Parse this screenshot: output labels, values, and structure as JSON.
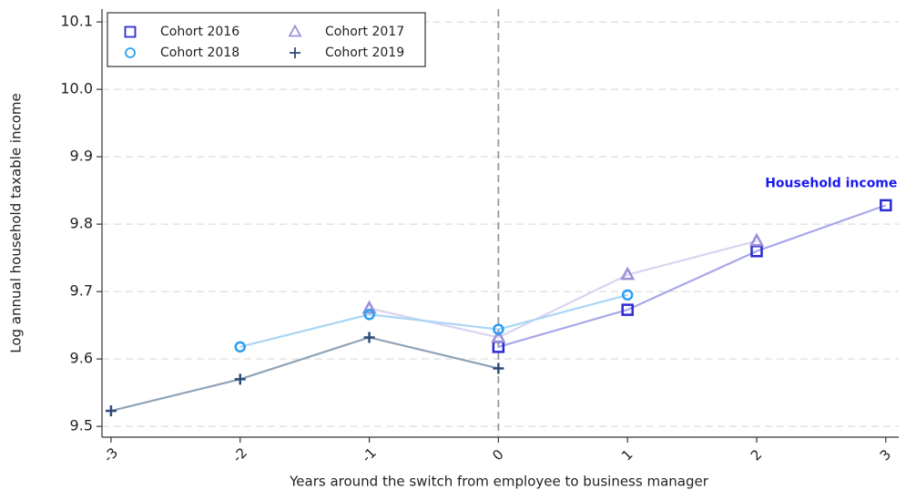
{
  "chart_data": {
    "type": "line",
    "xlabel": "Years around the switch from employee to business manager",
    "ylabel": "Log annual household taxable income",
    "annotation": {
      "text": "Household income",
      "x": 3,
      "y": 9.86,
      "color": "#1a1aee"
    },
    "vline": 0,
    "xlim": [
      -3.07,
      3.1
    ],
    "xticks": [
      -3,
      -2,
      -1,
      0,
      1,
      2,
      3
    ],
    "ylim": [
      9.484,
      10.119
    ],
    "yticks": [
      9.5,
      9.6,
      9.7,
      9.8,
      9.9,
      {
        "value": 10,
        "label": "10.0"
      },
      10.1
    ],
    "grid": true,
    "legend": "upper left",
    "series": [
      {
        "name": "Cohort 2016",
        "marker": "square",
        "color": "#2b2bd6",
        "line_color": "#a7a7ea",
        "x": [
          0,
          1,
          2,
          3
        ],
        "values": [
          9.618,
          9.673,
          9.76,
          9.828
        ]
      },
      {
        "name": "Cohort 2017",
        "marker": "triangle",
        "color": "#9b91d8",
        "line_color": "#d8d4f0",
        "x": [
          -1,
          0,
          1,
          2
        ],
        "values": [
          9.675,
          9.632,
          9.725,
          9.775
        ]
      },
      {
        "name": "Cohort 2018",
        "marker": "circle",
        "color": "#2a9ef2",
        "line_color": "#aad6f6",
        "x": [
          -2,
          -1,
          0,
          1
        ],
        "values": [
          9.618,
          9.666,
          9.644,
          9.695
        ]
      },
      {
        "name": "Cohort 2019",
        "marker": "plus",
        "color": "#2c4c78",
        "line_color": "#8ea3b7",
        "x": [
          -3,
          -2,
          -1,
          0
        ],
        "values": [
          9.523,
          9.57,
          9.632,
          9.586
        ]
      }
    ]
  }
}
